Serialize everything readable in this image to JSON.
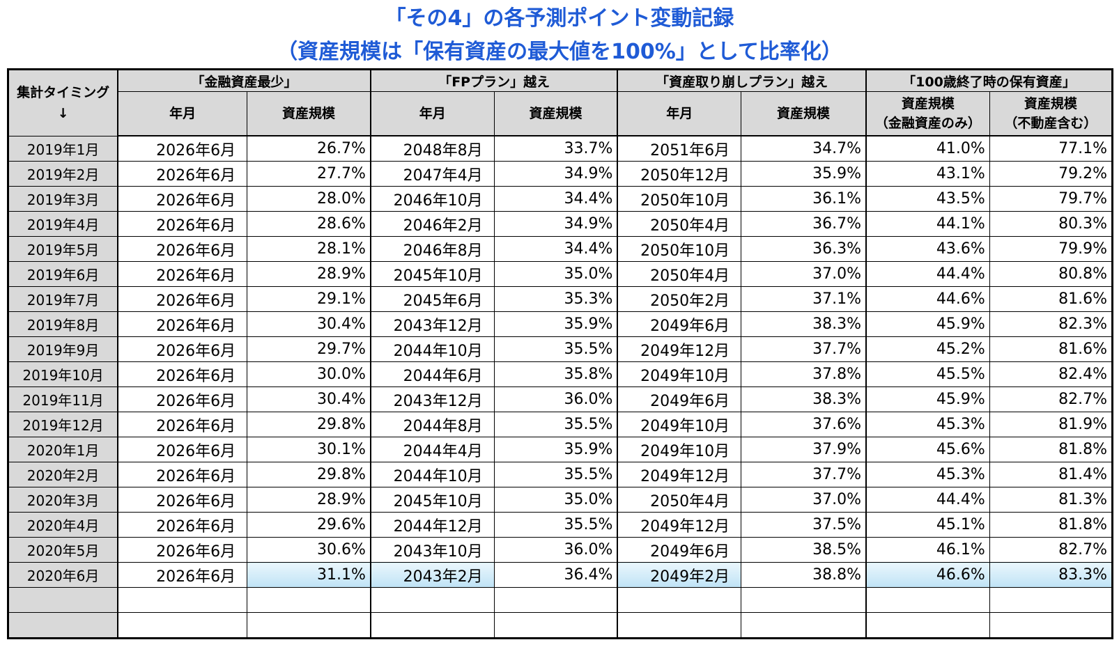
{
  "title_line1": "「その4」の各予測ポイント変動記録",
  "title_line2": "（資産規模は「保有資産の最大値を100%」として比率化）",
  "header": {
    "corner_label": "集計タイミング",
    "corner_arrow": "↓",
    "groups": [
      "「金融資産最少」",
      "「FPプラン」越え",
      "「資産取り崩しプラン」越え",
      "「100歳終了時の保有資産」"
    ],
    "sub": {
      "ym": "年月",
      "scale": "資産規模",
      "fin_only_1": "資産規模",
      "fin_only_2": "（金融資産のみ）",
      "with_re_1": "資産規模",
      "with_re_2": "（不動産含む）"
    }
  },
  "rows": [
    {
      "label": "2019年1月",
      "c": [
        "2026年6月",
        "26.7%",
        "2048年8月",
        "33.7%",
        "2051年6月",
        "34.7%",
        "41.0%",
        "77.1%"
      ]
    },
    {
      "label": "2019年2月",
      "c": [
        "2026年6月",
        "27.7%",
        "2047年4月",
        "34.9%",
        "2050年12月",
        "35.9%",
        "43.1%",
        "79.2%"
      ]
    },
    {
      "label": "2019年3月",
      "c": [
        "2026年6月",
        "28.0%",
        "2046年10月",
        "34.4%",
        "2050年10月",
        "36.1%",
        "43.5%",
        "79.7%"
      ]
    },
    {
      "label": "2019年4月",
      "c": [
        "2026年6月",
        "28.6%",
        "2046年2月",
        "34.9%",
        "2050年4月",
        "36.7%",
        "44.1%",
        "80.3%"
      ]
    },
    {
      "label": "2019年5月",
      "c": [
        "2026年6月",
        "28.1%",
        "2046年8月",
        "34.4%",
        "2050年10月",
        "36.3%",
        "43.6%",
        "79.9%"
      ]
    },
    {
      "label": "2019年6月",
      "c": [
        "2026年6月",
        "28.9%",
        "2045年10月",
        "35.0%",
        "2050年4月",
        "37.0%",
        "44.4%",
        "80.8%"
      ]
    },
    {
      "label": "2019年7月",
      "c": [
        "2026年6月",
        "29.1%",
        "2045年6月",
        "35.3%",
        "2050年2月",
        "37.1%",
        "44.6%",
        "81.6%"
      ]
    },
    {
      "label": "2019年8月",
      "c": [
        "2026年6月",
        "30.4%",
        "2043年12月",
        "35.9%",
        "2049年6月",
        "38.3%",
        "45.9%",
        "82.3%"
      ]
    },
    {
      "label": "2019年9月",
      "c": [
        "2026年6月",
        "29.7%",
        "2044年10月",
        "35.5%",
        "2049年12月",
        "37.7%",
        "45.2%",
        "81.6%"
      ]
    },
    {
      "label": "2019年10月",
      "c": [
        "2026年6月",
        "30.0%",
        "2044年6月",
        "35.8%",
        "2049年10月",
        "37.8%",
        "45.5%",
        "82.4%"
      ]
    },
    {
      "label": "2019年11月",
      "c": [
        "2026年6月",
        "30.4%",
        "2043年12月",
        "36.0%",
        "2049年6月",
        "38.3%",
        "45.9%",
        "82.7%"
      ]
    },
    {
      "label": "2019年12月",
      "c": [
        "2026年6月",
        "29.8%",
        "2044年8月",
        "35.5%",
        "2049年10月",
        "37.6%",
        "45.3%",
        "81.9%"
      ]
    },
    {
      "label": "2020年1月",
      "c": [
        "2026年6月",
        "30.1%",
        "2044年4月",
        "35.9%",
        "2049年10月",
        "37.9%",
        "45.6%",
        "81.8%"
      ]
    },
    {
      "label": "2020年2月",
      "c": [
        "2026年6月",
        "29.8%",
        "2044年10月",
        "35.5%",
        "2049年12月",
        "37.7%",
        "45.3%",
        "81.4%"
      ]
    },
    {
      "label": "2020年3月",
      "c": [
        "2026年6月",
        "28.9%",
        "2045年10月",
        "35.0%",
        "2050年4月",
        "37.0%",
        "44.4%",
        "81.3%"
      ]
    },
    {
      "label": "2020年4月",
      "c": [
        "2026年6月",
        "29.6%",
        "2044年12月",
        "35.5%",
        "2049年12月",
        "37.5%",
        "45.1%",
        "81.8%"
      ]
    },
    {
      "label": "2020年5月",
      "c": [
        "2026年6月",
        "30.6%",
        "2043年10月",
        "36.0%",
        "2049年6月",
        "38.5%",
        "46.1%",
        "82.7%"
      ]
    },
    {
      "label": "2020年6月",
      "c": [
        "2026年6月",
        "31.1%",
        "2043年2月",
        "36.4%",
        "2049年2月",
        "38.8%",
        "46.6%",
        "83.3%"
      ]
    }
  ],
  "highlight_row_index": 17,
  "highlight_columns": [
    1,
    2,
    4,
    6,
    7
  ],
  "empty_rows": 2,
  "colors": {
    "title": "#1f5bd6",
    "header_bg": "#d9d9d9",
    "highlight_top": "#eaf6fc",
    "highlight_bottom": "#bfe3f6"
  }
}
